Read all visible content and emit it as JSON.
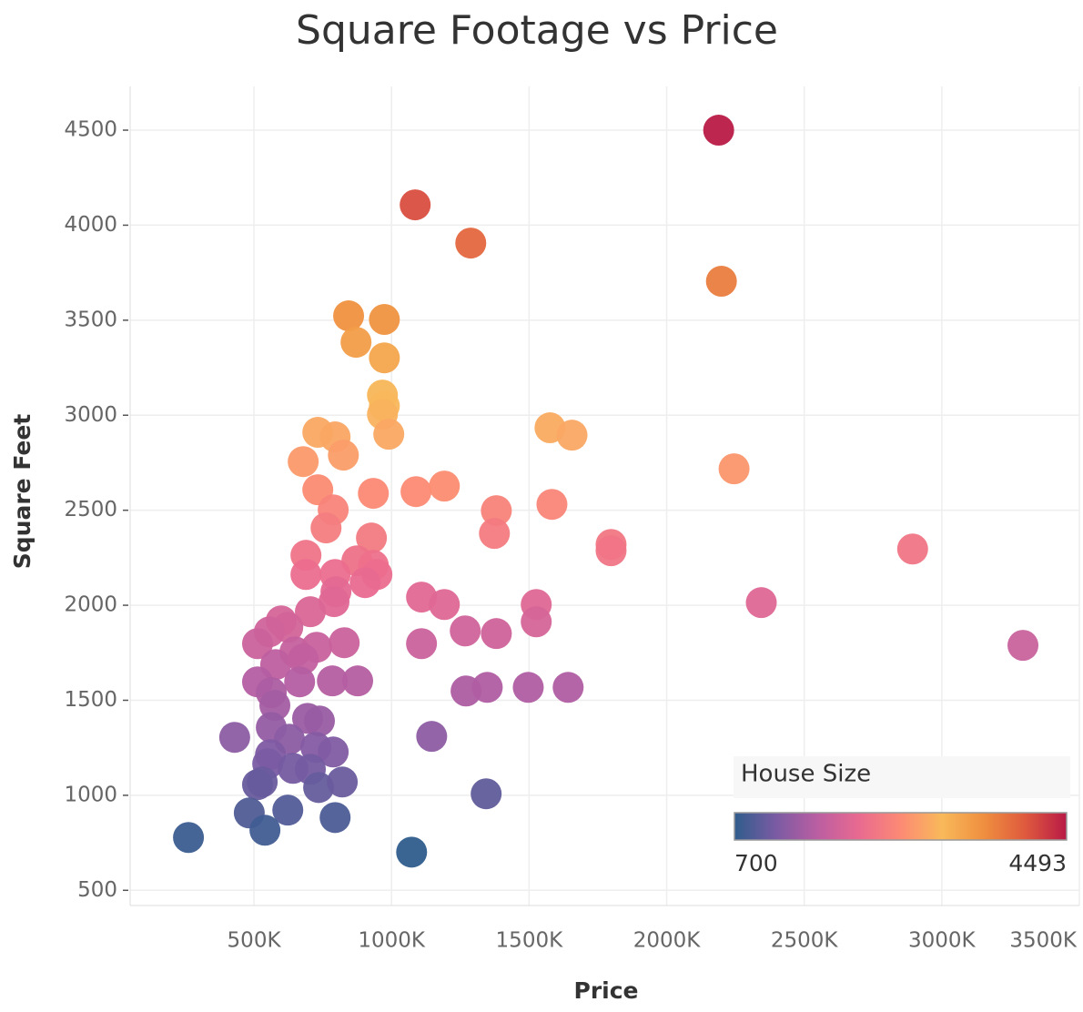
{
  "chart_data": {
    "type": "scatter",
    "title": "Square Footage vs Price",
    "x_label": "Price",
    "y_label": "Square Feet",
    "x": [
      2189000,
      1086000,
      1288000,
      2199000,
      844000,
      974000,
      871000,
      974000,
      967000,
      974000,
      967000,
      990000,
      732000,
      795000,
      825000,
      679000,
      1576000,
      1656000,
      2245000,
      732000,
      934000,
      1089000,
      1192000,
      788000,
      1381000,
      1583000,
      762000,
      1374000,
      927000,
      1798000,
      1798000,
      2894000,
      689000,
      874000,
      934000,
      689000,
      795000,
      947000,
      904000,
      798000,
      1109000,
      1192000,
      1526000,
      2344000,
      791000,
      705000,
      599000,
      623000,
      1526000,
      1268000,
      1381000,
      556000,
      513000,
      1109000,
      828000,
      728000,
      649000,
      3295000,
      579000,
      679000,
      513000,
      666000,
      785000,
      877000,
      563000,
      1271000,
      1348000,
      1497000,
      1642000,
      576000,
      430000,
      1146000,
      563000,
      695000,
      738000,
      629000,
      725000,
      788000,
      560000,
      550000,
      642000,
      705000,
      530000,
      513000,
      735000,
      821000,
      1344000,
      483000,
      623000,
      795000,
      262000,
      540000,
      1073000
    ],
    "values": [
      4500,
      4107,
      3906,
      3705,
      3523,
      3504,
      3384,
      3302,
      3106,
      3049,
      3005,
      2900,
      2910,
      2886,
      2790,
      2756,
      2934,
      2895,
      2718,
      2608,
      2589,
      2598,
      2627,
      2502,
      2498,
      2531,
      2407,
      2378,
      2354,
      2320,
      2287,
      2296,
      2263,
      2234,
      2210,
      2162,
      2162,
      2162,
      2119,
      2071,
      2043,
      2004,
      2004,
      2014,
      2019,
      1966,
      1918,
      1884,
      1913,
      1865,
      1851,
      1860,
      1798,
      1798,
      1803,
      1779,
      1755,
      1789,
      1688,
      1717,
      1597,
      1597,
      1602,
      1602,
      1540,
      1549,
      1568,
      1568,
      1568,
      1473,
      1305,
      1310,
      1357,
      1405,
      1391,
      1295,
      1252,
      1228,
      1214,
      1166,
      1142,
      1137,
      1070,
      1056,
      1041,
      1070,
      1008,
      907,
      922,
      883,
      778,
      816,
      701
    ],
    "xlim": [
      50000,
      3500000
    ],
    "xticks": [
      {
        "value": 500000,
        "label": "500K"
      },
      {
        "value": 1000000,
        "label": "1000K"
      },
      {
        "value": 1500000,
        "label": "1500K"
      },
      {
        "value": 2000000,
        "label": "2000K"
      },
      {
        "value": 2500000,
        "label": "2500K"
      },
      {
        "value": 3000000,
        "label": "3000K"
      },
      {
        "value": 3500000,
        "label": "3500K"
      }
    ],
    "ylim": [
      420,
      4730
    ],
    "yticks": [
      500,
      1000,
      1500,
      2000,
      2500,
      3000,
      3500,
      4000,
      4500
    ],
    "grid": true,
    "color_legend": {
      "title": "House Size",
      "range": [
        700,
        4493
      ],
      "colors": [
        "#2f5d8c",
        "#7a5ba3",
        "#bb5ea2",
        "#e96a90",
        "#fc8a74",
        "#f9b95a",
        "#ef8f3f",
        "#df5a3e",
        "#b81a46"
      ]
    }
  }
}
